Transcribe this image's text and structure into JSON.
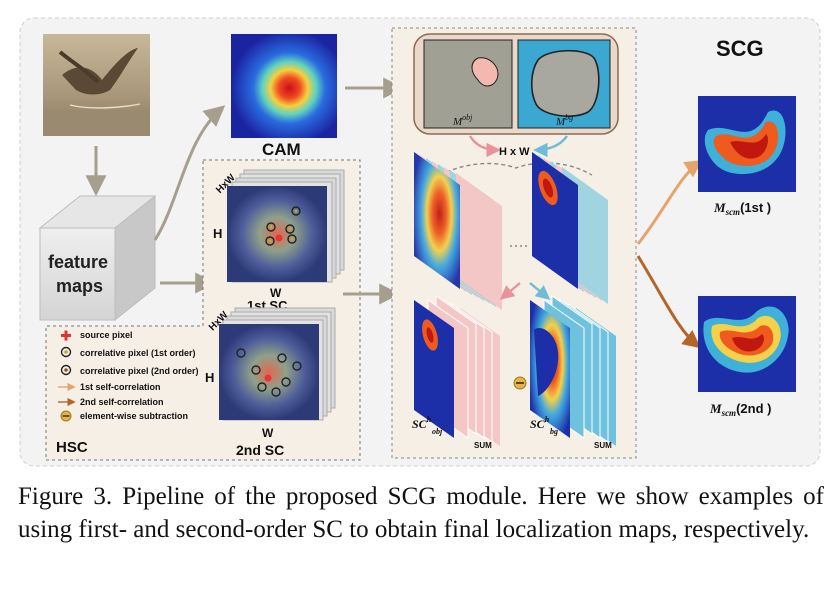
{
  "figure": {
    "title": "SCG",
    "cam_label": "CAM",
    "hsc_label": "HSC",
    "feature_maps": [
      "feature",
      "maps"
    ],
    "first_sc": "1st SC",
    "second_sc": "2nd SC",
    "hxw_small": "HxW",
    "hxw_mid": "H x W",
    "h": "H",
    "w": "W",
    "m_obj": "M",
    "m_obj_sup": "obj",
    "m_bg": "M",
    "m_bg_sup": "bg",
    "sc_obj": "SC",
    "sc_obj_sup": "h",
    "sc_obj_sub": "obj",
    "sc_bg": "SC",
    "sc_bg_sup": "h",
    "sc_bg_sub": "bg",
    "sum": "SUM",
    "m_scm_first": "M",
    "m_scm_first_sub": "scm",
    "m_scm_first_suffix": "(1st )",
    "m_scm_second": "M",
    "m_scm_second_sub": "scm",
    "m_scm_second_suffix": "(2nd )"
  },
  "legend": {
    "source_pixel": "source pixel",
    "corr_first": "correlative pixel (1st order)",
    "corr_second": "correlative pixel (2nd order)",
    "self_corr_first": "1st self-correlation",
    "self_corr_second": "2nd self-correlation",
    "subtraction": "element-wise subtraction"
  },
  "caption": "Figure 3. Pipeline of the proposed SCG module. Here we show examples of using first- and second-order SC to obtain final localization maps, respectively.",
  "colors": {
    "panel_bg": "#f6efe6",
    "arrow_gray": "#a79f8e",
    "pink_arrow": "#e8939c",
    "blue_arrow": "#6fbcd8",
    "orange_arrow": "#e7a46a",
    "brown_arrow": "#b5652a",
    "heat_high": "#d92d10",
    "heat_low": "#1d2fa8"
  }
}
